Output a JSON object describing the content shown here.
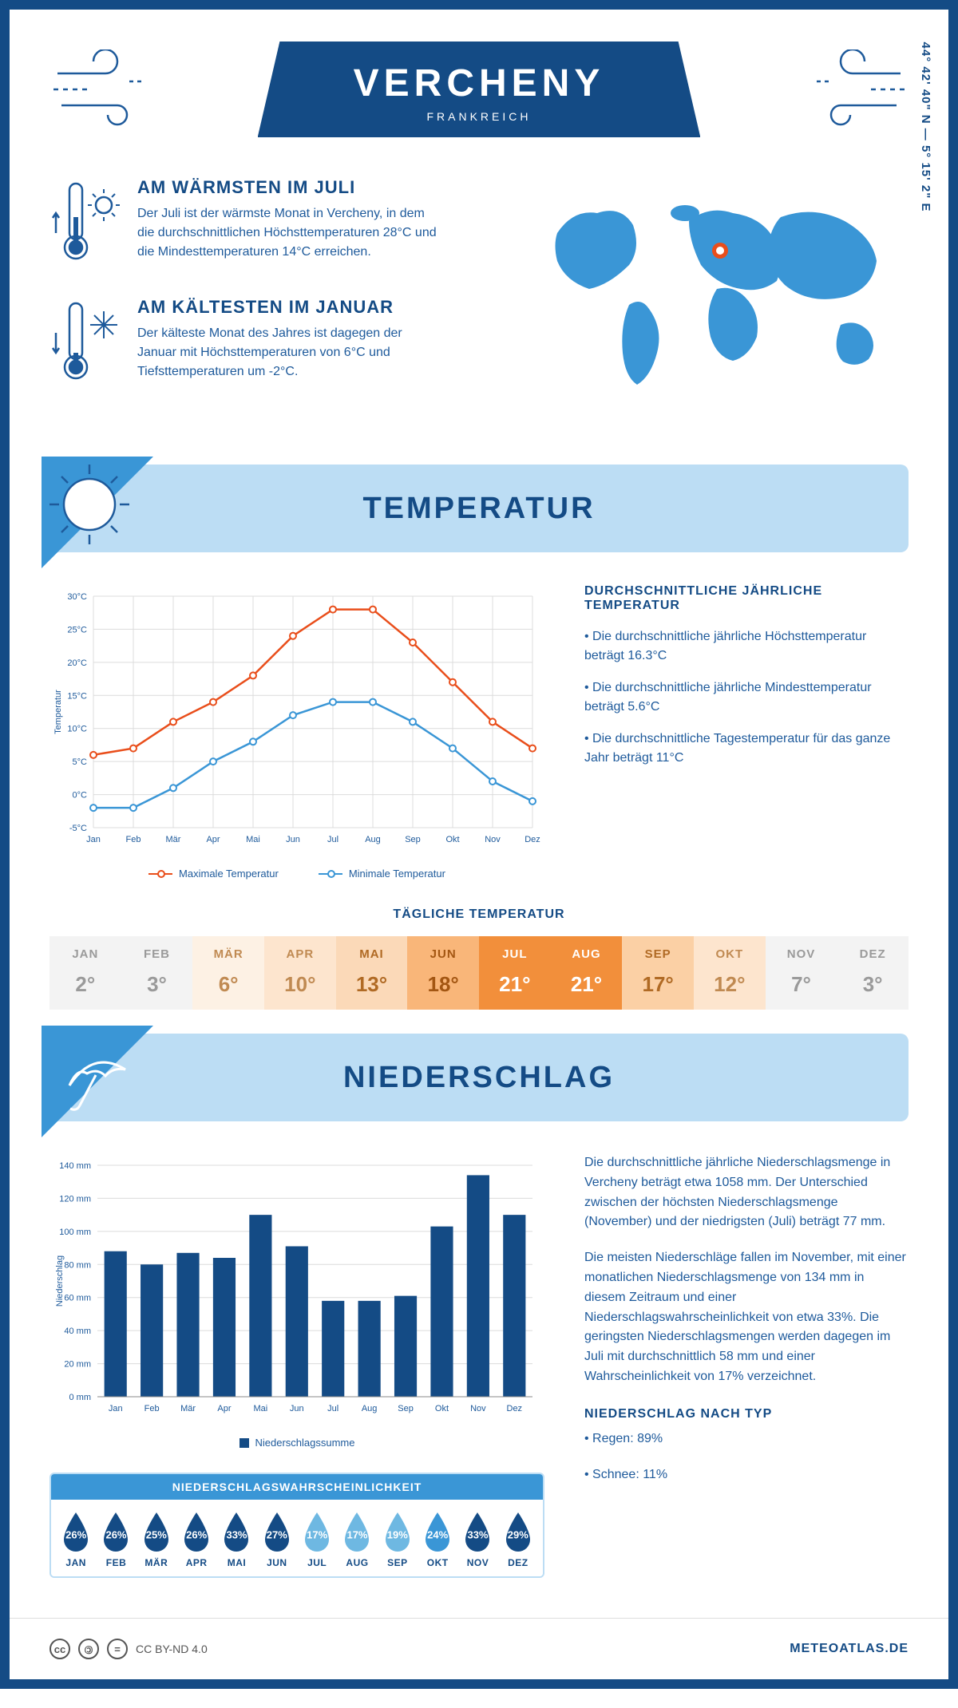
{
  "header": {
    "city": "VERCHENY",
    "country": "FRANKREICH",
    "coords": "44° 42' 40\" N — 5° 15' 2\" E"
  },
  "months": [
    "Jan",
    "Feb",
    "Mär",
    "Apr",
    "Mai",
    "Jun",
    "Jul",
    "Aug",
    "Sep",
    "Okt",
    "Nov",
    "Dez"
  ],
  "months_upper": [
    "JAN",
    "FEB",
    "MÄR",
    "APR",
    "MAI",
    "JUN",
    "JUL",
    "AUG",
    "SEP",
    "OKT",
    "NOV",
    "DEZ"
  ],
  "warmest": {
    "title": "AM WÄRMSTEN IM JULI",
    "text": "Der Juli ist der wärmste Monat in Vercheny, in dem die durchschnittlichen Höchsttemperaturen 28°C und die Mindesttemperaturen 14°C erreichen."
  },
  "coldest": {
    "title": "AM KÄLTESTEN IM JANUAR",
    "text": "Der kälteste Monat des Jahres ist dagegen der Januar mit Höchsttemperaturen von 6°C und Tiefsttemperaturen um -2°C."
  },
  "temp_section": {
    "title": "TEMPERATUR",
    "chart": {
      "type": "line",
      "ylabel": "Temperatur",
      "ylim": [
        -5,
        30
      ],
      "ytick_step": 5,
      "y_suffix": "°C",
      "max_color": "#e94e1b",
      "min_color": "#3a96d6",
      "grid_color": "#dcdcdc",
      "max_series": [
        6,
        7,
        11,
        14,
        18,
        24,
        28,
        28,
        23,
        17,
        11,
        7
      ],
      "min_series": [
        -2,
        -2,
        1,
        5,
        8,
        12,
        14,
        14,
        11,
        7,
        2,
        -1
      ],
      "legend_max": "Maximale Temperatur",
      "legend_min": "Minimale Temperatur"
    },
    "notes": {
      "title": "DURCHSCHNITTLICHE JÄHRLICHE TEMPERATUR",
      "b1": "• Die durchschnittliche jährliche Höchsttemperatur beträgt 16.3°C",
      "b2": "• Die durchschnittliche jährliche Mindesttemperatur beträgt 5.6°C",
      "b3": "• Die durchschnittliche Tagestemperatur für das ganze Jahr beträgt 11°C"
    },
    "daily": {
      "title": "TÄGLICHE TEMPERATUR",
      "values": [
        "2°",
        "3°",
        "6°",
        "10°",
        "13°",
        "18°",
        "21°",
        "21°",
        "17°",
        "12°",
        "7°",
        "3°"
      ],
      "bg_colors": [
        "#f3f3f3",
        "#f3f3f3",
        "#fdf1e4",
        "#fde5ce",
        "#fbd9b8",
        "#f9b679",
        "#f28f3b",
        "#f28f3b",
        "#fbd0a5",
        "#fde5ce",
        "#f3f3f3",
        "#f3f3f3"
      ],
      "text_colors": [
        "#9a9a9a",
        "#9a9a9a",
        "#c08a52",
        "#c08a52",
        "#b06a24",
        "#a35612",
        "#ffffff",
        "#ffffff",
        "#b06a24",
        "#c08a52",
        "#9a9a9a",
        "#9a9a9a"
      ]
    }
  },
  "precip_section": {
    "title": "NIEDERSCHLAG",
    "chart": {
      "type": "bar",
      "ylabel": "Niederschlag",
      "ylim": [
        0,
        140
      ],
      "ytick_step": 20,
      "y_suffix": " mm",
      "bar_color": "#144b85",
      "grid_color": "#dcdcdc",
      "values": [
        88,
        80,
        87,
        84,
        110,
        91,
        58,
        58,
        61,
        103,
        134,
        110
      ],
      "legend": "Niederschlagssumme"
    },
    "text1": "Die durchschnittliche jährliche Niederschlagsmenge in Vercheny beträgt etwa 1058 mm. Der Unterschied zwischen der höchsten Niederschlagsmenge (November) und der niedrigsten (Juli) beträgt 77 mm.",
    "text2": "Die meisten Niederschläge fallen im November, mit einer monatlichen Niederschlagsmenge von 134 mm in diesem Zeitraum und einer Niederschlagswahrscheinlichkeit von etwa 33%. Die geringsten Niederschlagsmengen werden dagegen im Juli mit durchschnittlich 58 mm und einer Wahrscheinlichkeit von 17% verzeichnet.",
    "type_title": "NIEDERSCHLAG NACH TYP",
    "type_b1": "• Regen: 89%",
    "type_b2": "• Schnee: 11%",
    "prob": {
      "title": "NIEDERSCHLAGSWAHRSCHEINLICHKEIT",
      "values": [
        "26%",
        "26%",
        "25%",
        "26%",
        "33%",
        "27%",
        "17%",
        "17%",
        "19%",
        "24%",
        "33%",
        "29%"
      ],
      "colors": [
        "#144b85",
        "#144b85",
        "#144b85",
        "#144b85",
        "#144b85",
        "#144b85",
        "#6eb8e2",
        "#6eb8e2",
        "#6eb8e2",
        "#3a96d6",
        "#144b85",
        "#144b85"
      ]
    }
  },
  "footer": {
    "license": "CC BY-ND 4.0",
    "brand": "METEOATLAS.DE"
  }
}
